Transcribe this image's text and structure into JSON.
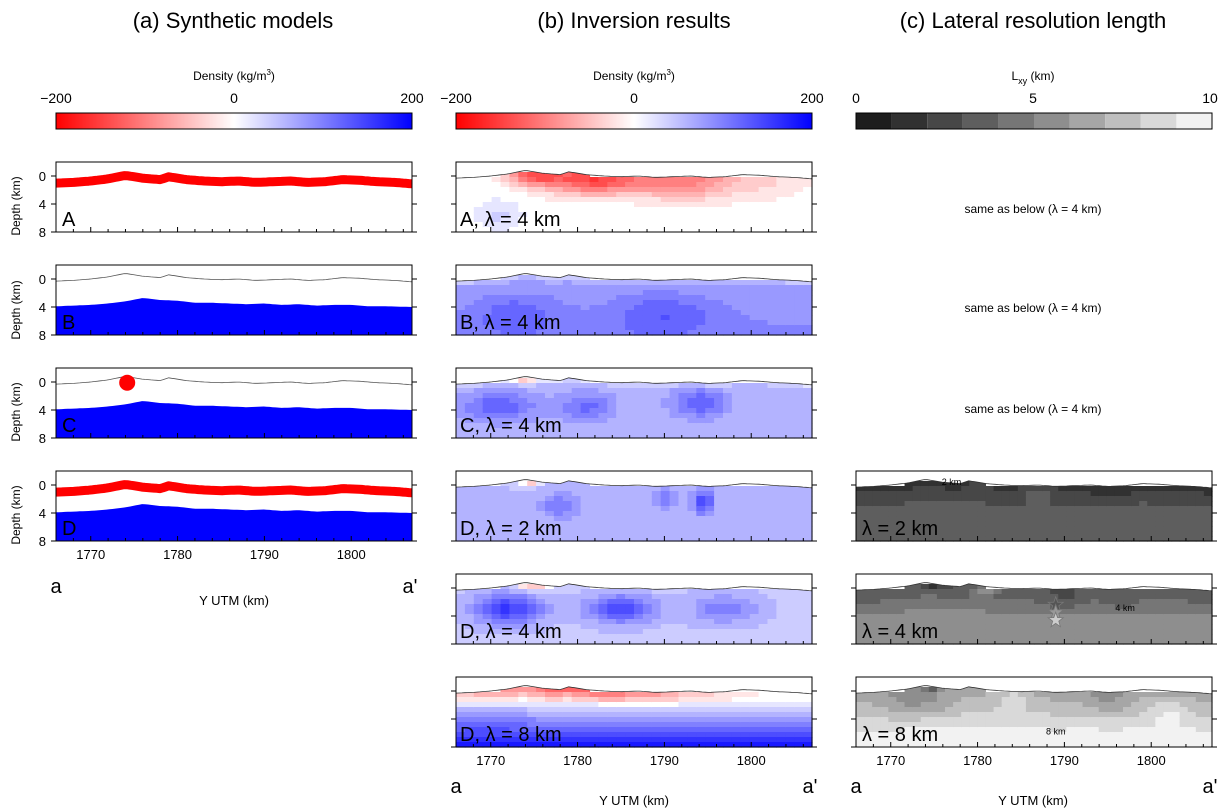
{
  "colorbars": {
    "a": {
      "label": "Density (kg/m3)",
      "label_main": "Density (kg/m",
      "label_sup": "3",
      "label_end": ")",
      "ticks": [
        "−200",
        "0",
        "200"
      ],
      "min": -200,
      "max": 200
    },
    "b": {
      "label": "Density (kg/m3)",
      "label_main": "Density (kg/m",
      "label_sup": "3",
      "label_end": ")",
      "ticks": [
        "−200",
        "0",
        "200"
      ],
      "min": -200,
      "max": 200
    },
    "c": {
      "label": "Lxy (km)",
      "label_main": "L",
      "label_sub": "xy",
      "label_end": " (km)",
      "ticks": [
        "0",
        "5",
        "10"
      ],
      "min": 0,
      "max": 10,
      "steps": 10
    }
  },
  "colors": {
    "negative": "#ff0000",
    "positive": "#0000ff",
    "zero": "#ffffff"
  },
  "chart_data": [
    {
      "panel": "a",
      "title": "(a) Synthetic models",
      "type": "area",
      "xlabel": "Y UTM (km)",
      "ylabel": "Depth (km)",
      "xlim": [
        1766,
        1807
      ],
      "ylim": [
        8,
        -2
      ],
      "x_ticks": [
        1770,
        1780,
        1790,
        1800
      ],
      "y_ticks": [
        0,
        4,
        8
      ],
      "profile_ends": [
        "a",
        "a'"
      ],
      "topography": {
        "x": [
          1766,
          1768,
          1770,
          1772,
          1774,
          1776,
          1778,
          1779,
          1781,
          1783,
          1785,
          1787,
          1789,
          1791,
          1793,
          1795,
          1797,
          1799,
          1801,
          1803,
          1805,
          1807
        ],
        "depth": [
          0.3,
          0.2,
          0.0,
          -0.3,
          -0.8,
          -0.4,
          -0.2,
          -0.6,
          -0.2,
          0.0,
          0.1,
          0.0,
          0.2,
          0.1,
          0.0,
          0.2,
          0.1,
          -0.2,
          -0.1,
          0.1,
          0.2,
          0.4
        ]
      },
      "basement": {
        "x": [
          1766,
          1768,
          1770,
          1772,
          1774,
          1776,
          1778,
          1780,
          1782,
          1784,
          1786,
          1788,
          1790,
          1792,
          1794,
          1796,
          1798,
          1800,
          1802,
          1804,
          1807
        ],
        "depth": [
          3.9,
          3.8,
          3.7,
          3.5,
          3.2,
          2.7,
          3.0,
          3.1,
          3.4,
          3.4,
          3.5,
          3.6,
          3.5,
          3.7,
          3.6,
          3.8,
          3.7,
          3.7,
          3.9,
          3.9,
          4.0
        ]
      },
      "rows": [
        {
          "label": "A",
          "near_surface_layer": true,
          "basement": false,
          "sphere": false
        },
        {
          "label": "B",
          "near_surface_layer": false,
          "basement": true,
          "sphere": false
        },
        {
          "label": "C",
          "near_surface_layer": false,
          "basement": true,
          "sphere": true
        },
        {
          "label": "D",
          "near_surface_layer": true,
          "basement": true,
          "sphere": false
        }
      ],
      "sphere": {
        "x": 1774.2,
        "depth": 0.1
      },
      "layer_density": -200,
      "basement_density": 200
    },
    {
      "panel": "b",
      "title": "(b) Inversion results",
      "type": "heatmap",
      "xlabel": "Y UTM (km)",
      "xlim": [
        1766,
        1807
      ],
      "x_ticks": [
        1770,
        1780,
        1790,
        1800
      ],
      "profile_ends": [
        "a",
        "a'"
      ],
      "rows": [
        {
          "label": "A, λ = 4 km",
          "case": "A"
        },
        {
          "label": "B, λ = 4 km",
          "case": "B"
        },
        {
          "label": "C, λ = 4 km",
          "case": "C"
        },
        {
          "label": "D, λ = 2 km",
          "case": "D2"
        },
        {
          "label": "D, λ = 4 km",
          "case": "D4"
        },
        {
          "label": "D, λ = 8 km",
          "case": "D8"
        }
      ]
    },
    {
      "panel": "c",
      "title": "(c) Lateral resolution length",
      "type": "heatmap",
      "xlabel": "Y UTM (km)",
      "xlim": [
        1766,
        1807
      ],
      "x_ticks": [
        1770,
        1780,
        1790,
        1800
      ],
      "profile_ends": [
        "a",
        "a'"
      ],
      "notes": [
        "same as below (λ = 4 km)",
        "same as below (λ = 4 km)",
        "same as below (λ = 4 km)"
      ],
      "rows": [
        {
          "label": "λ = 2 km",
          "contour": "2 km",
          "level": 2
        },
        {
          "label": "λ = 4 km",
          "contour": "4 km",
          "level": 4
        },
        {
          "label": "λ = 8 km",
          "contour": "8 km",
          "level": 8
        }
      ],
      "stars": [
        {
          "x": 1789,
          "depth": 2.4
        },
        {
          "x": 1789,
          "depth": 3.5
        },
        {
          "x": 1789,
          "depth": 4.6
        }
      ]
    }
  ]
}
